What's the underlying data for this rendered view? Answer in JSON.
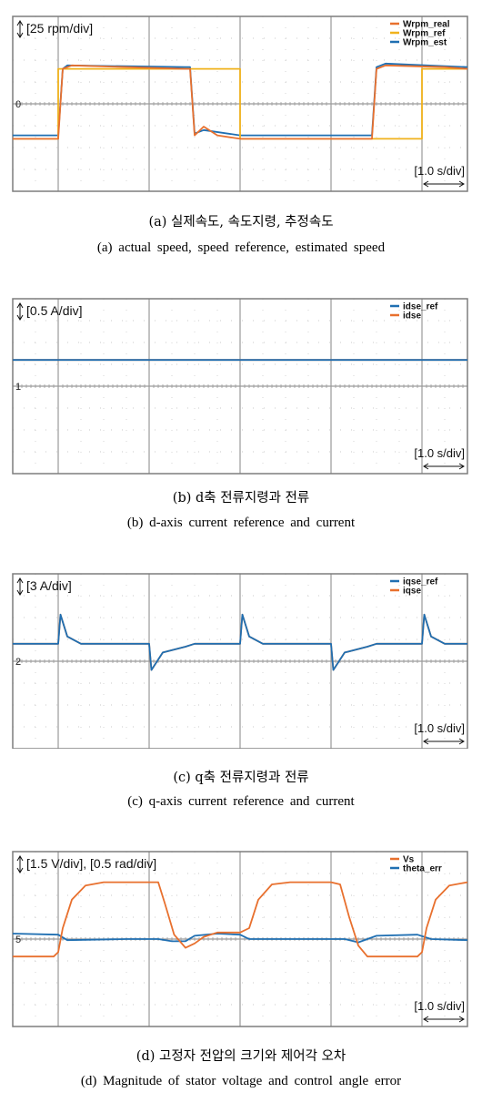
{
  "colors": {
    "orange": "#e8702e",
    "yellow": "#f0b21c",
    "blue": "#1f6fb2",
    "grid": "#9a9a9a",
    "frame": "#7d7d7d"
  },
  "chart_data": [
    {
      "id": "a",
      "type": "line",
      "scale_label": "[25 rpm/div]",
      "time_label": "[1.0 s/div]",
      "ground_marker": "0",
      "x_unit": "s",
      "y_unit": "rpm",
      "xlim": [
        0,
        10
      ],
      "ylim": [
        -50,
        50
      ],
      "grid": true,
      "legend_position": "top-right",
      "series": [
        {
          "name": "Wrpm_real",
          "color": "#e8702e",
          "points": [
            [
              0.0,
              -20
            ],
            [
              0.9,
              -20
            ],
            [
              1.0,
              -20
            ],
            [
              1.1,
              20
            ],
            [
              1.3,
              22
            ],
            [
              2.5,
              21
            ],
            [
              3.8,
              20
            ],
            [
              3.9,
              20
            ],
            [
              4.0,
              -18
            ],
            [
              4.2,
              -13
            ],
            [
              4.5,
              -18
            ],
            [
              5.0,
              -20
            ],
            [
              7.8,
              -20
            ],
            [
              7.9,
              -20
            ],
            [
              8.0,
              20
            ],
            [
              8.2,
              22
            ],
            [
              9.5,
              21
            ],
            [
              10.0,
              20
            ]
          ]
        },
        {
          "name": "Wrpm_ref",
          "color": "#f0b21c",
          "points": [
            [
              0.0,
              -20
            ],
            [
              1.0,
              -20
            ],
            [
              1.0,
              20
            ],
            [
              5.0,
              20
            ],
            [
              5.0,
              -20
            ],
            [
              9.0,
              -20
            ],
            [
              9.0,
              20
            ],
            [
              10.0,
              20
            ]
          ]
        },
        {
          "name": "Wrpm_est",
          "color": "#1f6fb2",
          "points": [
            [
              0.0,
              -18
            ],
            [
              1.0,
              -18
            ],
            [
              1.1,
              20
            ],
            [
              1.2,
              22
            ],
            [
              3.8,
              21
            ],
            [
              3.9,
              21
            ],
            [
              4.0,
              -17
            ],
            [
              4.2,
              -15
            ],
            [
              5.0,
              -18
            ],
            [
              7.8,
              -18
            ],
            [
              7.9,
              -18
            ],
            [
              8.0,
              21
            ],
            [
              8.2,
              23
            ],
            [
              10.0,
              21
            ]
          ]
        }
      ]
    },
    {
      "id": "b",
      "type": "line",
      "scale_label": "[0.5 A/div]",
      "time_label": "[1.0 s/div]",
      "ground_marker": "1",
      "x_unit": "s",
      "y_unit": "A",
      "xlim": [
        0,
        10
      ],
      "ylim": [
        -1,
        1
      ],
      "grid": true,
      "legend_position": "top-right",
      "series": [
        {
          "name": "idse_ref",
          "color": "#1f6fb2",
          "points": [
            [
              0,
              0.3
            ],
            [
              10,
              0.3
            ]
          ]
        },
        {
          "name": "idse",
          "color": "#e8702e",
          "points": [
            [
              0,
              0.3
            ],
            [
              10,
              0.3
            ]
          ]
        }
      ]
    },
    {
      "id": "c",
      "type": "line",
      "scale_label": "[3 A/div]",
      "time_label": "[1.0 s/div]",
      "ground_marker": "2",
      "x_unit": "s",
      "y_unit": "A",
      "xlim": [
        0,
        10
      ],
      "ylim": [
        -6,
        6
      ],
      "grid": true,
      "legend_position": "top-right",
      "series": [
        {
          "name": "iqse_ref",
          "color": "#1f6fb2",
          "points": [
            [
              0.0,
              1.2
            ],
            [
              1.0,
              1.2
            ],
            [
              1.05,
              3.2
            ],
            [
              1.2,
              1.7
            ],
            [
              1.5,
              1.2
            ],
            [
              3.0,
              1.2
            ],
            [
              3.05,
              -0.6
            ],
            [
              3.3,
              0.6
            ],
            [
              3.8,
              1.0
            ],
            [
              4.0,
              1.2
            ],
            [
              5.0,
              1.2
            ],
            [
              5.05,
              3.2
            ],
            [
              5.2,
              1.7
            ],
            [
              5.5,
              1.2
            ],
            [
              7.0,
              1.2
            ],
            [
              7.05,
              -0.6
            ],
            [
              7.3,
              0.6
            ],
            [
              7.8,
              1.0
            ],
            [
              8.0,
              1.2
            ],
            [
              9.0,
              1.2
            ],
            [
              9.05,
              3.2
            ],
            [
              9.2,
              1.7
            ],
            [
              9.5,
              1.2
            ],
            [
              10.0,
              1.2
            ]
          ]
        },
        {
          "name": "iqse",
          "color": "#e8702e",
          "points": [
            [
              0.0,
              1.2
            ],
            [
              1.0,
              1.2
            ],
            [
              1.05,
              3.2
            ],
            [
              1.2,
              1.7
            ],
            [
              1.5,
              1.2
            ],
            [
              3.0,
              1.2
            ],
            [
              3.05,
              -0.6
            ],
            [
              3.3,
              0.6
            ],
            [
              3.8,
              1.0
            ],
            [
              4.0,
              1.2
            ],
            [
              5.0,
              1.2
            ],
            [
              5.05,
              3.2
            ],
            [
              5.2,
              1.7
            ],
            [
              5.5,
              1.2
            ],
            [
              7.0,
              1.2
            ],
            [
              7.05,
              -0.6
            ],
            [
              7.3,
              0.6
            ],
            [
              7.8,
              1.0
            ],
            [
              8.0,
              1.2
            ],
            [
              9.0,
              1.2
            ],
            [
              9.05,
              3.2
            ],
            [
              9.2,
              1.7
            ],
            [
              9.5,
              1.2
            ],
            [
              10.0,
              1.2
            ]
          ]
        }
      ]
    },
    {
      "id": "d",
      "type": "line",
      "scale_label": "[1.5 V/div], [0.5 rad/div]",
      "time_label": "[1.0 s/div]",
      "ground_marker": "5",
      "x_unit": "s",
      "y_unit": "div",
      "xlim": [
        0,
        10
      ],
      "ylim": [
        -4,
        4
      ],
      "grid": true,
      "legend_position": "top-right",
      "series": [
        {
          "name": "Vs",
          "color": "#e8702e",
          "points": [
            [
              0.0,
              -0.8
            ],
            [
              0.9,
              -0.8
            ],
            [
              1.0,
              -0.6
            ],
            [
              1.1,
              0.5
            ],
            [
              1.3,
              1.8
            ],
            [
              1.6,
              2.45
            ],
            [
              2.0,
              2.6
            ],
            [
              3.0,
              2.6
            ],
            [
              3.2,
              2.6
            ],
            [
              3.35,
              1.6
            ],
            [
              3.55,
              0.2
            ],
            [
              3.8,
              -0.4
            ],
            [
              4.0,
              -0.2
            ],
            [
              4.2,
              0.1
            ],
            [
              4.5,
              0.3
            ],
            [
              5.0,
              0.3
            ],
            [
              5.2,
              0.5
            ],
            [
              5.4,
              1.8
            ],
            [
              5.7,
              2.5
            ],
            [
              6.1,
              2.6
            ],
            [
              7.0,
              2.6
            ],
            [
              7.2,
              2.5
            ],
            [
              7.4,
              1.0
            ],
            [
              7.6,
              -0.3
            ],
            [
              7.8,
              -0.8
            ],
            [
              8.9,
              -0.8
            ],
            [
              9.0,
              -0.6
            ],
            [
              9.1,
              0.5
            ],
            [
              9.3,
              1.8
            ],
            [
              9.6,
              2.45
            ],
            [
              10.0,
              2.6
            ]
          ]
        },
        {
          "name": "theta_err",
          "color": "#1f6fb2",
          "points": [
            [
              0.0,
              0.25
            ],
            [
              1.0,
              0.2
            ],
            [
              1.2,
              -0.05
            ],
            [
              2.5,
              0.0
            ],
            [
              3.2,
              0.0
            ],
            [
              3.5,
              -0.1
            ],
            [
              3.8,
              -0.1
            ],
            [
              4.0,
              0.15
            ],
            [
              4.5,
              0.25
            ],
            [
              5.0,
              0.2
            ],
            [
              5.2,
              0.0
            ],
            [
              6.5,
              0.0
            ],
            [
              7.3,
              0.0
            ],
            [
              7.6,
              -0.15
            ],
            [
              8.0,
              0.15
            ],
            [
              8.9,
              0.2
            ],
            [
              9.2,
              0.0
            ],
            [
              10.0,
              -0.05
            ]
          ]
        }
      ]
    }
  ],
  "captions": {
    "a_ko": "(a) 실제속도, 속도지령, 추정속도",
    "a_en": "(a) actual speed, speed reference, estimated speed",
    "b_ko": "(b) d축 전류지령과 전류",
    "b_en": "(b) d-axis current reference and current",
    "c_ko": "(c) q축 전류지령과 전류",
    "c_en": "(c) q-axis current reference and current",
    "d_ko": "(d) 고정자 전압의 크기와 제어각 오차",
    "d_en": "(d) Magnitude of stator voltage and control angle error"
  }
}
